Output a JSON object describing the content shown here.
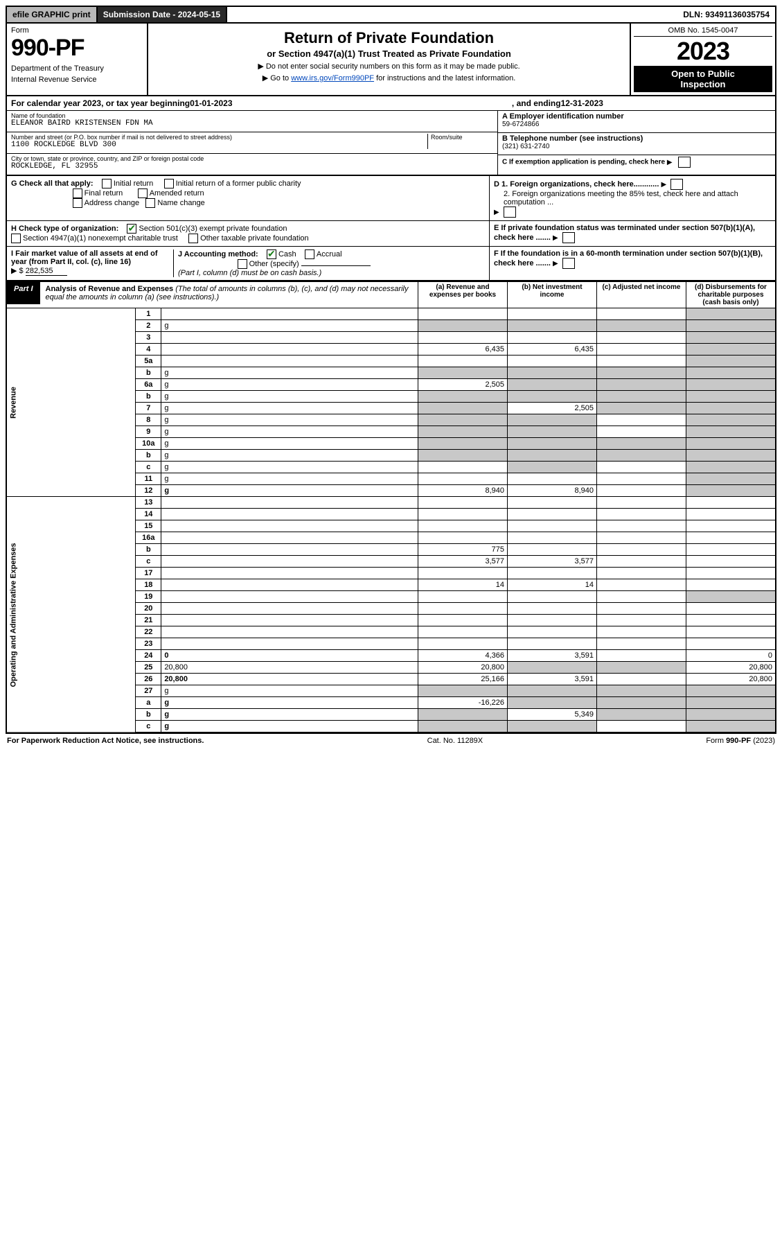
{
  "topbar": {
    "efile": "efile GRAPHIC print",
    "subdate_label": "Submission Date - 2024-05-15",
    "dln": "DLN: 93491136035754"
  },
  "header": {
    "form_word": "Form",
    "form_num": "990-PF",
    "dept": "Department of the Treasury",
    "irs": "Internal Revenue Service",
    "title": "Return of Private Foundation",
    "subtitle": "or Section 4947(a)(1) Trust Treated as Private Foundation",
    "note1": "▶ Do not enter social security numbers on this form as it may be made public.",
    "note2_pre": "▶ Go to ",
    "note2_link": "www.irs.gov/Form990PF",
    "note2_post": " for instructions and the latest information.",
    "omb": "OMB No. 1545-0047",
    "year": "2023",
    "openpub_l1": "Open to Public",
    "openpub_l2": "Inspection"
  },
  "calrow": {
    "prefix": "For calendar year 2023, or tax year beginning ",
    "begin": "01-01-2023",
    "mid": " , and ending ",
    "end": "12-31-2023"
  },
  "identity": {
    "name_label": "Name of foundation",
    "name": "ELEANOR BAIRD KRISTENSEN FDN MA",
    "addr_label": "Number and street (or P.O. box number if mail is not delivered to street address)",
    "room_label": "Room/suite",
    "addr": "1100 ROCKLEDGE BLVD 300",
    "city_label": "City or town, state or province, country, and ZIP or foreign postal code",
    "city": "ROCKLEDGE, FL  32955",
    "a_label": "A Employer identification number",
    "a_val": "59-6724866",
    "b_label": "B Telephone number (see instructions)",
    "b_val": "(321) 631-2740",
    "c_label": "C If exemption application is pending, check here"
  },
  "checks": {
    "g_label": "G Check all that apply:",
    "g_opts": [
      "Initial return",
      "Initial return of a former public charity",
      "Final return",
      "Amended return",
      "Address change",
      "Name change"
    ],
    "h_label": "H Check type of organization:",
    "h1": "Section 501(c)(3) exempt private foundation",
    "h2": "Section 4947(a)(1) nonexempt charitable trust",
    "h3": "Other taxable private foundation",
    "i_label": "I Fair market value of all assets at end of year (from Part II, col. (c), line 16)",
    "i_prefix": "▶ $",
    "i_val": "282,535",
    "j_label": "J Accounting method:",
    "j_cash": "Cash",
    "j_accrual": "Accrual",
    "j_other": "Other (specify)",
    "j_note": "(Part I, column (d) must be on cash basis.)",
    "d1": "D 1. Foreign organizations, check here............",
    "d2": "2. Foreign organizations meeting the 85% test, check here and attach computation ...",
    "e": "E  If private foundation status was terminated under section 507(b)(1)(A), check here .......",
    "f": "F  If the foundation is in a 60-month termination under section 507(b)(1)(B), check here ......."
  },
  "part1": {
    "tag": "Part I",
    "title": "Analysis of Revenue and Expenses",
    "title_note": " (The total of amounts in columns (b), (c), and (d) may not necessarily equal the amounts in column (a) (see instructions).)",
    "col_a": "(a)  Revenue and expenses per books",
    "col_b": "(b)  Net investment income",
    "col_c": "(c)  Adjusted net income",
    "col_d": "(d)  Disbursements for charitable purposes (cash basis only)"
  },
  "sidebars": {
    "revenue": "Revenue",
    "opexp": "Operating and Administrative Expenses"
  },
  "rows": [
    {
      "n": "1",
      "d": "",
      "a": "",
      "b": "",
      "c": "",
      "grey": [
        "d"
      ]
    },
    {
      "n": "2",
      "d": "g",
      "a": "g",
      "b": "g",
      "c": "g"
    },
    {
      "n": "3",
      "d": "",
      "a": "",
      "b": "",
      "c": "",
      "grey": [
        "d"
      ]
    },
    {
      "n": "4",
      "d": "",
      "a": "6,435",
      "b": "6,435",
      "c": "",
      "grey": [
        "d"
      ]
    },
    {
      "n": "5a",
      "d": "",
      "a": "",
      "b": "",
      "c": "",
      "grey": [
        "d"
      ]
    },
    {
      "n": "b",
      "d": "g",
      "a": "g",
      "b": "g",
      "c": "g"
    },
    {
      "n": "6a",
      "d": "g",
      "a": "2,505",
      "b": "g",
      "c": "g"
    },
    {
      "n": "b",
      "d": "g",
      "a": "g",
      "b": "g",
      "c": "g"
    },
    {
      "n": "7",
      "d": "g",
      "a": "g",
      "b": "2,505",
      "c": "g"
    },
    {
      "n": "8",
      "d": "g",
      "a": "g",
      "b": "g",
      "c": ""
    },
    {
      "n": "9",
      "d": "g",
      "a": "g",
      "b": "g",
      "c": ""
    },
    {
      "n": "10a",
      "d": "g",
      "a": "g",
      "b": "g",
      "c": "g"
    },
    {
      "n": "b",
      "d": "g",
      "a": "g",
      "b": "g",
      "c": "g"
    },
    {
      "n": "c",
      "d": "g",
      "a": "",
      "b": "g",
      "c": ""
    },
    {
      "n": "11",
      "d": "g",
      "a": "",
      "b": "",
      "c": ""
    },
    {
      "n": "12",
      "d": "g",
      "a": "8,940",
      "b": "8,940",
      "c": "",
      "bold": true
    },
    {
      "n": "13",
      "d": "",
      "a": "",
      "b": "",
      "c": ""
    },
    {
      "n": "14",
      "d": "",
      "a": "",
      "b": "",
      "c": ""
    },
    {
      "n": "15",
      "d": "",
      "a": "",
      "b": "",
      "c": ""
    },
    {
      "n": "16a",
      "d": "",
      "a": "",
      "b": "",
      "c": ""
    },
    {
      "n": "b",
      "d": "",
      "a": "775",
      "b": "",
      "c": ""
    },
    {
      "n": "c",
      "d": "",
      "a": "3,577",
      "b": "3,577",
      "c": ""
    },
    {
      "n": "17",
      "d": "",
      "a": "",
      "b": "",
      "c": ""
    },
    {
      "n": "18",
      "d": "",
      "a": "14",
      "b": "14",
      "c": ""
    },
    {
      "n": "19",
      "d": "",
      "a": "",
      "b": "",
      "c": "",
      "grey": [
        "d"
      ]
    },
    {
      "n": "20",
      "d": "",
      "a": "",
      "b": "",
      "c": ""
    },
    {
      "n": "21",
      "d": "",
      "a": "",
      "b": "",
      "c": ""
    },
    {
      "n": "22",
      "d": "",
      "a": "",
      "b": "",
      "c": ""
    },
    {
      "n": "23",
      "d": "",
      "a": "",
      "b": "",
      "c": ""
    },
    {
      "n": "24",
      "d": "0",
      "a": "4,366",
      "b": "3,591",
      "c": "",
      "bold": true
    },
    {
      "n": "25",
      "d": "20,800",
      "a": "20,800",
      "b": "g",
      "c": "g"
    },
    {
      "n": "26",
      "d": "20,800",
      "a": "25,166",
      "b": "3,591",
      "c": "",
      "bold": true
    },
    {
      "n": "27",
      "d": "g",
      "a": "g",
      "b": "g",
      "c": "g"
    },
    {
      "n": "a",
      "d": "g",
      "a": "-16,226",
      "b": "g",
      "c": "g",
      "bold": true
    },
    {
      "n": "b",
      "d": "g",
      "a": "g",
      "b": "5,349",
      "c": "g",
      "bold": true
    },
    {
      "n": "c",
      "d": "g",
      "a": "g",
      "b": "g",
      "c": "",
      "bold": true
    }
  ],
  "footer": {
    "left": "For Paperwork Reduction Act Notice, see instructions.",
    "mid": "Cat. No. 11289X",
    "right": "Form 990-PF (2023)"
  },
  "colors": {
    "link": "#0047bb",
    "grey": "#c8c8c8",
    "topbtn": "#b8b8b8",
    "topdark": "#2a2a2a",
    "check": "#1a7f1a"
  }
}
